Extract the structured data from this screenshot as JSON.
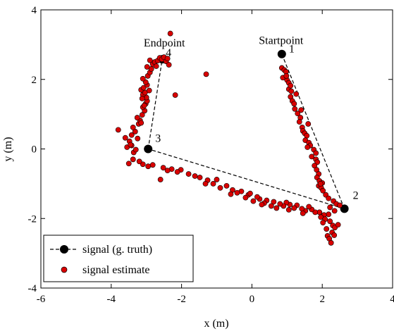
{
  "chart_data": {
    "type": "scatter",
    "title": "",
    "xlabel": "x (m)",
    "ylabel": "y (m)",
    "xlim": [
      -6,
      4
    ],
    "ylim": [
      -4,
      4
    ],
    "xticks": [
      -6,
      -4,
      -2,
      0,
      2,
      4
    ],
    "yticks": [
      -4,
      -2,
      0,
      2,
      4
    ],
    "x_tick_labels": [
      "-6",
      "-4",
      "-2",
      "0",
      "2",
      "4"
    ],
    "y_tick_labels": [
      "-4",
      "-2",
      "0",
      "2",
      "4"
    ],
    "grid": false,
    "legend_position": "bottom-left",
    "series": [
      {
        "name": "signal (g. truth)",
        "style": "dashed line with markers",
        "color": "#000000",
        "points": [
          {
            "x": 0.85,
            "y": 2.73,
            "label": "1"
          },
          {
            "x": 2.63,
            "y": -1.72,
            "label": "2"
          },
          {
            "x": -2.95,
            "y": 0.0,
            "label": "3"
          },
          {
            "x": -2.55,
            "y": 2.58,
            "label": "4"
          }
        ]
      },
      {
        "name": "signal estimate",
        "style": "markers",
        "color": "#d90000",
        "points": [
          [
            0.85,
            2.33
          ],
          [
            0.92,
            2.27
          ],
          [
            0.97,
            2.22
          ],
          [
            0.88,
            2.05
          ],
          [
            1.0,
            1.98
          ],
          [
            1.05,
            1.9
          ],
          [
            1.05,
            1.72
          ],
          [
            1.12,
            1.66
          ],
          [
            1.1,
            1.5
          ],
          [
            1.15,
            1.38
          ],
          [
            1.2,
            1.3
          ],
          [
            1.22,
            1.15
          ],
          [
            1.3,
            1.02
          ],
          [
            1.38,
            0.9
          ],
          [
            1.35,
            0.78
          ],
          [
            1.43,
            0.62
          ],
          [
            1.45,
            0.52
          ],
          [
            1.5,
            0.45
          ],
          [
            1.56,
            0.38
          ],
          [
            1.52,
            0.25
          ],
          [
            1.62,
            0.18
          ],
          [
            1.66,
            0.1
          ],
          [
            1.76,
            -0.02
          ],
          [
            1.82,
            -0.12
          ],
          [
            1.7,
            -0.22
          ],
          [
            1.82,
            -0.3
          ],
          [
            1.86,
            -0.38
          ],
          [
            1.78,
            -0.48
          ],
          [
            1.84,
            -0.6
          ],
          [
            1.9,
            -0.72
          ],
          [
            1.85,
            -0.82
          ],
          [
            1.92,
            -0.92
          ],
          [
            2.0,
            -0.98
          ],
          [
            1.9,
            -1.06
          ],
          [
            1.97,
            -1.12
          ],
          [
            2.02,
            -1.2
          ],
          [
            2.1,
            -1.32
          ],
          [
            2.18,
            -1.42
          ],
          [
            2.32,
            -1.5
          ],
          [
            2.4,
            -1.58
          ],
          [
            2.22,
            -1.68
          ],
          [
            2.5,
            -1.62
          ],
          [
            0.98,
            2.1
          ],
          [
            1.26,
            1.58
          ],
          [
            1.4,
            1.12
          ],
          [
            1.6,
            0.72
          ],
          [
            1.58,
            0.05
          ],
          [
            1.95,
            -1.0
          ],
          [
            2.35,
            -1.78
          ],
          [
            1.1,
            1.82
          ],
          [
            2.18,
            -1.88
          ],
          [
            2.05,
            -1.9
          ],
          [
            1.96,
            -1.96
          ],
          [
            2.08,
            -2.02
          ],
          [
            2.22,
            -2.08
          ],
          [
            2.3,
            -2.2
          ],
          [
            2.12,
            -2.3
          ],
          [
            2.36,
            -2.26
          ],
          [
            2.28,
            -2.4
          ],
          [
            2.34,
            -2.48
          ],
          [
            2.15,
            -2.5
          ],
          [
            2.2,
            -2.58
          ],
          [
            2.25,
            -2.7
          ],
          [
            2.45,
            -2.18
          ],
          [
            2.02,
            -2.12
          ],
          [
            1.92,
            -1.82
          ],
          [
            1.8,
            -1.82
          ],
          [
            1.7,
            -1.74
          ],
          [
            1.62,
            -1.66
          ],
          [
            1.52,
            -1.78
          ],
          [
            1.42,
            -1.72
          ],
          [
            1.28,
            -1.62
          ],
          [
            1.2,
            -1.7
          ],
          [
            1.08,
            -1.6
          ],
          [
            0.98,
            -1.54
          ],
          [
            0.9,
            -1.64
          ],
          [
            0.8,
            -1.58
          ],
          [
            0.62,
            -1.52
          ],
          [
            0.55,
            -1.64
          ],
          [
            0.42,
            -1.48
          ],
          [
            0.35,
            -1.56
          ],
          [
            0.22,
            -1.44
          ],
          [
            0.15,
            -1.38
          ],
          [
            0.04,
            -1.5
          ],
          [
            -0.1,
            -1.32
          ],
          [
            -0.18,
            -1.4
          ],
          [
            -0.3,
            -1.22
          ],
          [
            -0.42,
            -1.26
          ],
          [
            -0.55,
            -1.18
          ],
          [
            -0.72,
            -1.06
          ],
          [
            -0.9,
            -1.12
          ],
          [
            -1.1,
            -1.0
          ],
          [
            -1.26,
            -0.9
          ],
          [
            -1.32,
            -1.0
          ],
          [
            -1.48,
            -0.82
          ],
          [
            -1.62,
            -0.78
          ],
          [
            -1.8,
            -0.72
          ],
          [
            -2.02,
            -0.6
          ],
          [
            -2.12,
            -0.66
          ],
          [
            -2.28,
            -0.58
          ],
          [
            -2.52,
            -0.54
          ],
          [
            -2.6,
            -0.88
          ],
          [
            -2.82,
            -0.46
          ],
          [
            -2.95,
            -0.5
          ],
          [
            -3.1,
            -0.44
          ],
          [
            -3.2,
            -0.36
          ],
          [
            -3.38,
            -0.3
          ],
          [
            -3.5,
            -0.42
          ],
          [
            1.05,
            -1.75
          ],
          [
            0.7,
            -1.7
          ],
          [
            -0.05,
            -1.28
          ],
          [
            -1.0,
            -0.88
          ],
          [
            -2.4,
            -0.62
          ],
          [
            1.45,
            -1.85
          ],
          [
            0.28,
            -1.6
          ],
          [
            -0.6,
            -1.3
          ],
          [
            -3.36,
            -0.1
          ],
          [
            -3.3,
            -0.02
          ],
          [
            -3.42,
            0.1
          ],
          [
            -3.48,
            0.22
          ],
          [
            -3.6,
            0.32
          ],
          [
            -3.42,
            0.4
          ],
          [
            -3.32,
            0.5
          ],
          [
            -3.38,
            0.62
          ],
          [
            -3.22,
            0.72
          ],
          [
            -3.18,
            0.82
          ],
          [
            -3.26,
            0.9
          ],
          [
            -3.12,
            0.98
          ],
          [
            -3.05,
            1.1
          ],
          [
            -3.1,
            1.2
          ],
          [
            -3.02,
            1.3
          ],
          [
            -2.98,
            1.38
          ],
          [
            -3.0,
            1.48
          ],
          [
            -3.1,
            1.56
          ],
          [
            -3.04,
            1.62
          ],
          [
            -3.15,
            1.7
          ],
          [
            -3.08,
            1.76
          ],
          [
            -2.98,
            1.84
          ],
          [
            -3.02,
            1.92
          ],
          [
            -3.1,
            2.02
          ],
          [
            -2.96,
            2.1
          ],
          [
            -2.9,
            2.2
          ],
          [
            -2.86,
            2.3
          ],
          [
            -2.98,
            2.36
          ],
          [
            -2.82,
            2.44
          ],
          [
            -2.76,
            2.5
          ],
          [
            -2.68,
            2.54
          ],
          [
            -2.62,
            2.62
          ],
          [
            -2.56,
            2.58
          ],
          [
            -2.5,
            2.64
          ],
          [
            -2.44,
            2.52
          ],
          [
            -2.36,
            2.42
          ],
          [
            -2.32,
            3.32
          ],
          [
            -2.18,
            1.55
          ],
          [
            -1.3,
            2.15
          ],
          [
            -3.8,
            0.55
          ],
          [
            -3.55,
            0.05
          ],
          [
            -3.45,
            0.12
          ],
          [
            -3.15,
            0.75
          ],
          [
            -3.06,
            1.25
          ],
          [
            -2.92,
            1.68
          ],
          [
            -3.12,
            1.45
          ],
          [
            -2.72,
            2.38
          ],
          [
            -2.9,
            2.55
          ],
          [
            -2.4,
            2.6
          ],
          [
            -3.25,
            0.3
          ]
        ]
      }
    ],
    "annotations": [
      {
        "text": "Startpoint",
        "x": 0.85,
        "y": 2.73
      },
      {
        "text": "Endpoint",
        "x": -2.55,
        "y": 2.58
      }
    ]
  }
}
